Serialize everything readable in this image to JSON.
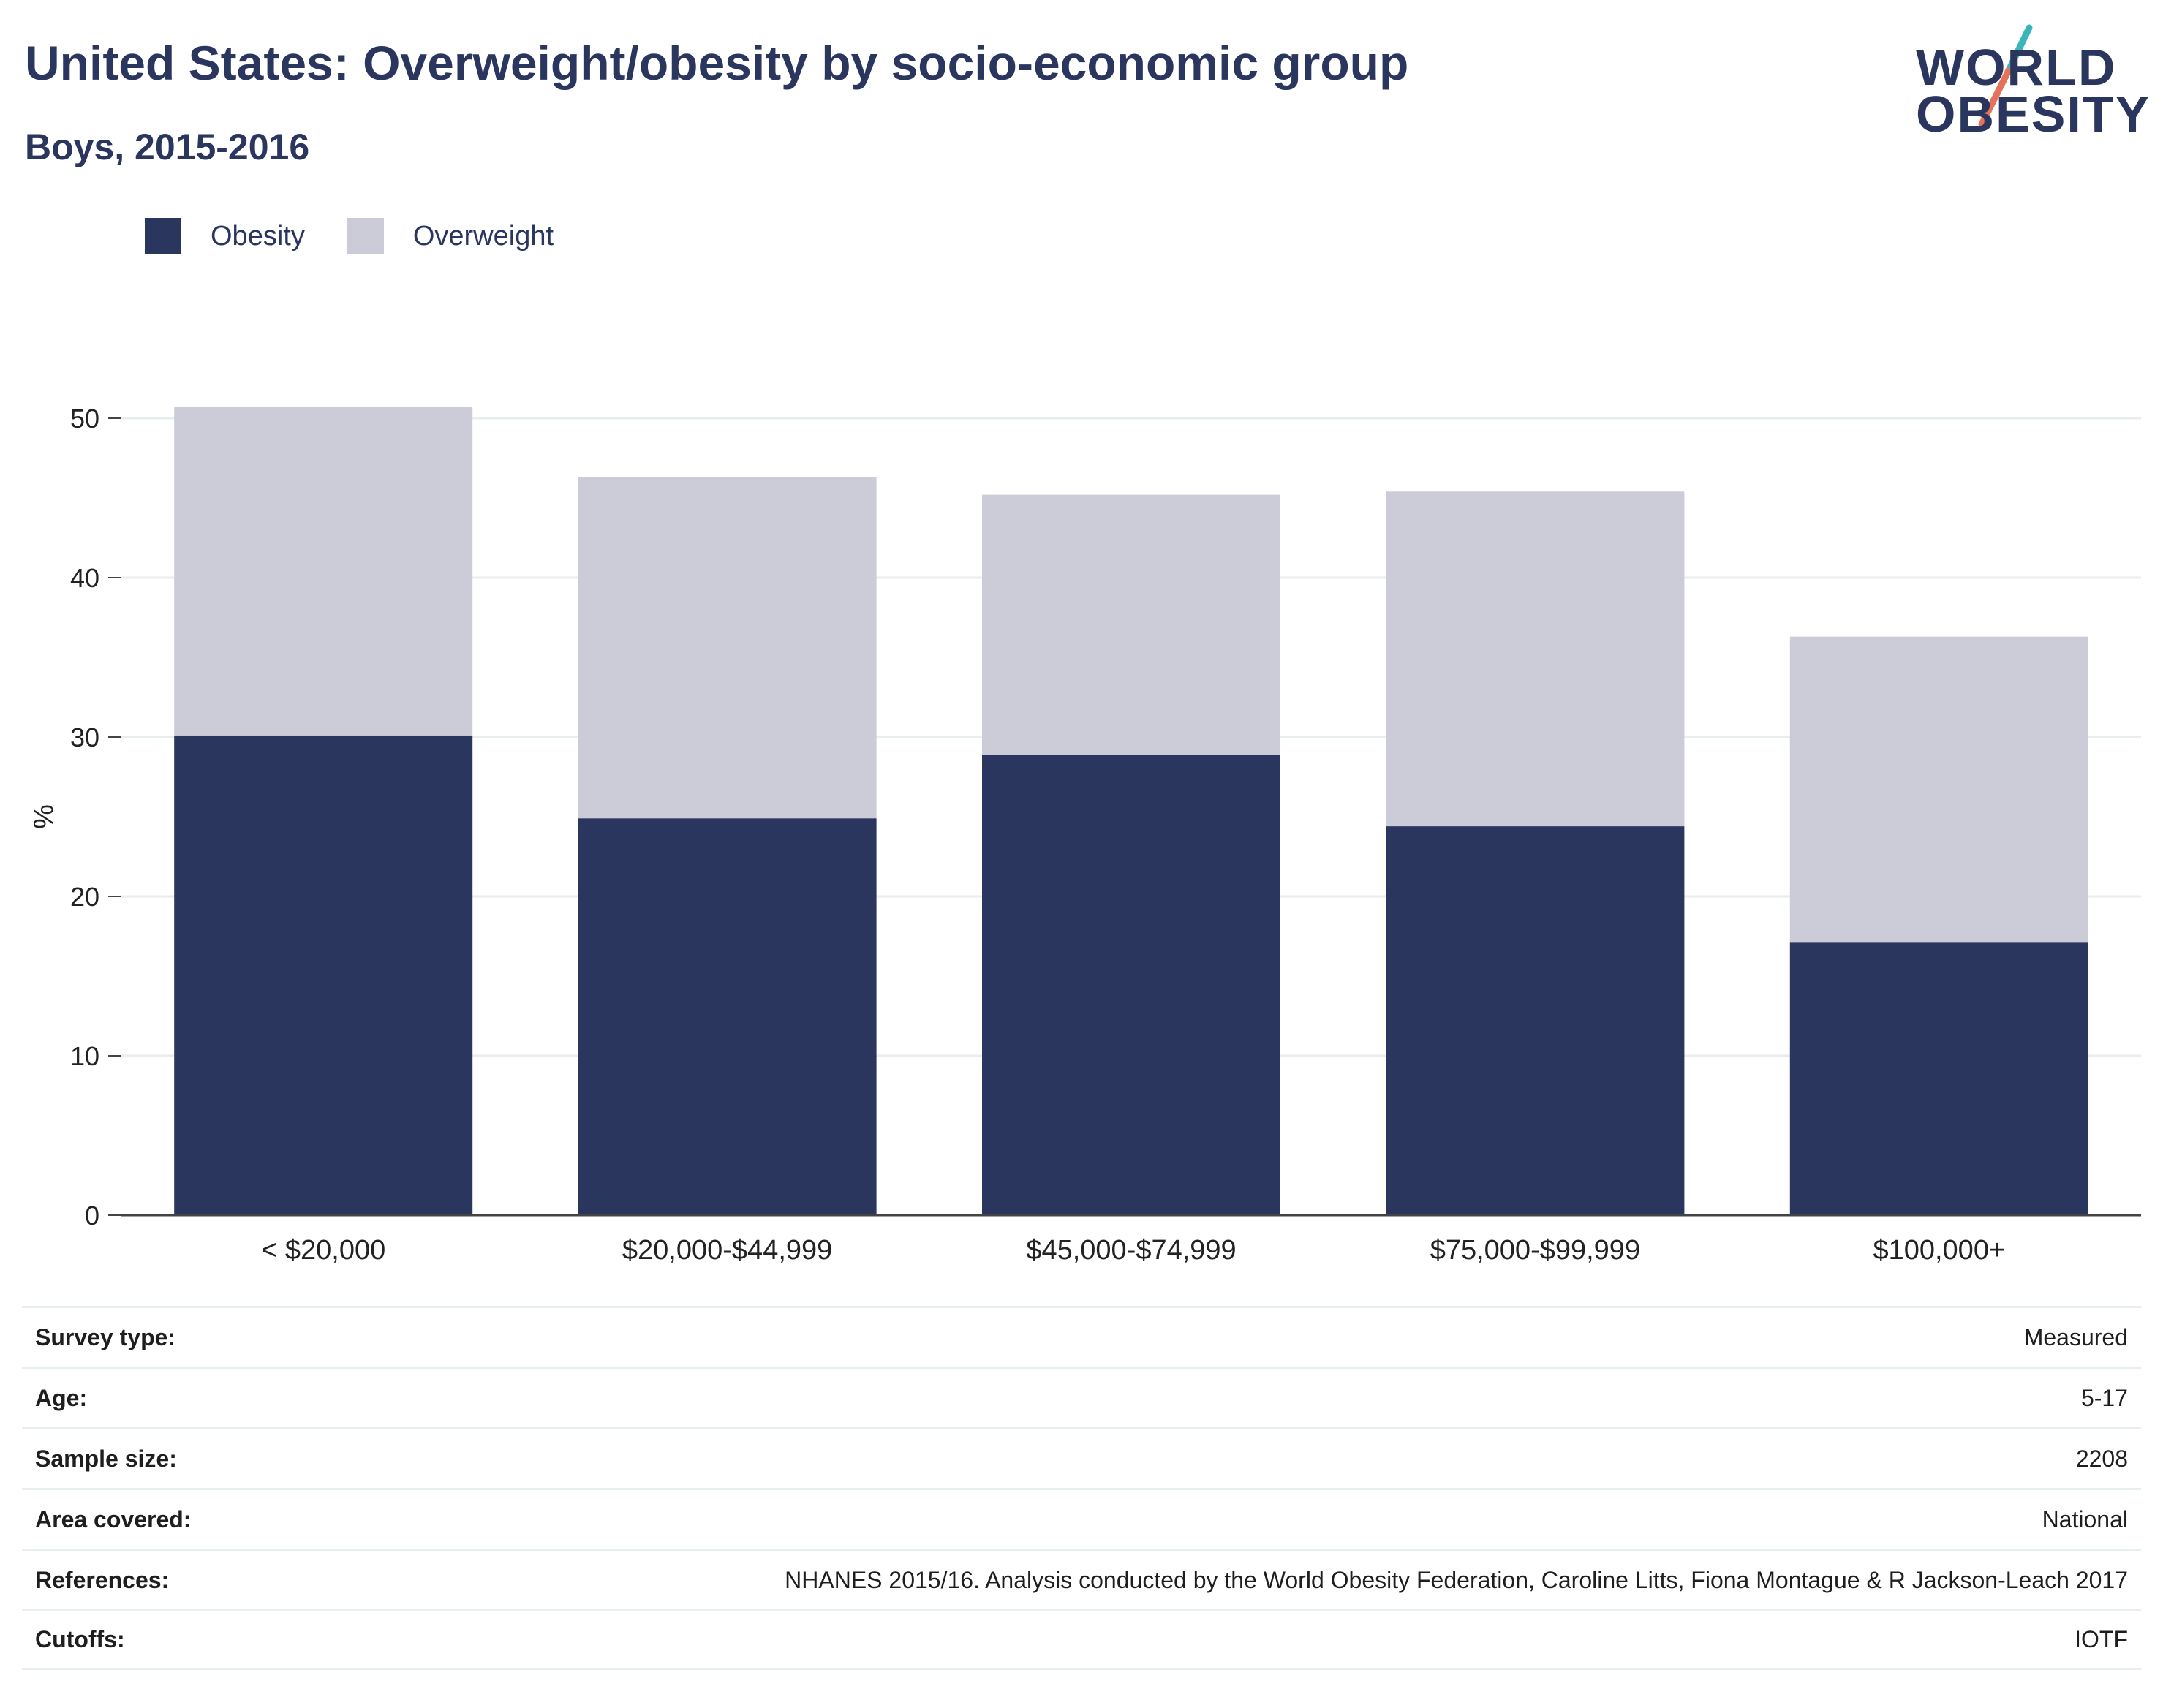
{
  "header": {
    "title": "United States: Overweight/obesity by socio-economic group",
    "subtitle": "Boys, 2015-2016"
  },
  "logo": {
    "line1": "WORLD",
    "line2": "OBESITY",
    "accent_colors": [
      "#3ab5b9",
      "#e5735a"
    ]
  },
  "legend": {
    "items": [
      {
        "label": "Obesity",
        "color": "#2b365f"
      },
      {
        "label": "Overweight",
        "color": "#cbccd8"
      }
    ]
  },
  "chart_data": {
    "type": "bar",
    "stacked": true,
    "categories": [
      "< $20,000",
      "$20,000-$44,999",
      "$45,000-$74,999",
      "$75,000-$99,999",
      "$100,000+"
    ],
    "series": [
      {
        "name": "Obesity",
        "color": "#2b365f",
        "values": [
          30.1,
          24.9,
          28.9,
          24.4,
          17.1
        ]
      },
      {
        "name": "Overweight",
        "color": "#cbccd8",
        "values": [
          20.6,
          21.4,
          16.3,
          21.0,
          19.2
        ]
      }
    ],
    "ylabel": "%",
    "ylim": [
      0,
      50
    ],
    "yticks": [
      0,
      10,
      20,
      30,
      40,
      50
    ],
    "grid": true,
    "legend_position": "top-left"
  },
  "info_table": {
    "rows": [
      {
        "label": "Survey type:",
        "value": "Measured"
      },
      {
        "label": "Age:",
        "value": "5-17"
      },
      {
        "label": "Sample size:",
        "value": "2208"
      },
      {
        "label": "Area covered:",
        "value": "National"
      },
      {
        "label": "References:",
        "value": "NHANES 2015/16. Analysis conducted by the World Obesity Federation, Caroline Litts, Fiona Montague & R Jackson-Leach 2017"
      },
      {
        "label": "Cutoffs:",
        "value": "IOTF"
      }
    ]
  }
}
